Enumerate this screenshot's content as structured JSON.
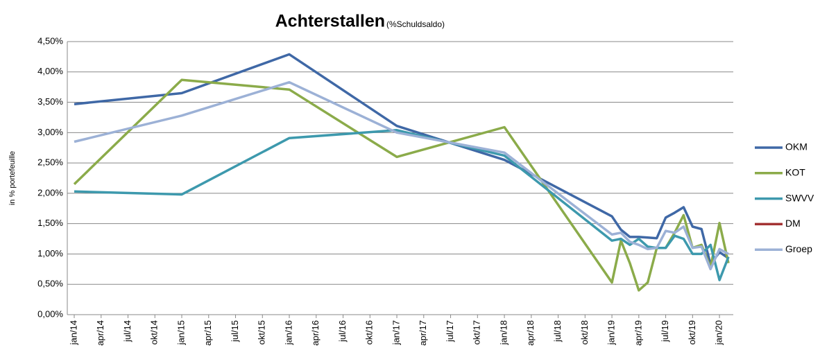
{
  "chart_data": {
    "type": "line",
    "title": "Achterstallen",
    "subtitle": "(%Schuldsaldo)",
    "y_label": "in % portefeuille",
    "x": [
      "2014-01",
      "2015-01",
      "2016-01",
      "2017-01",
      "2018-01",
      "2019-01",
      "2019-02",
      "2019-03",
      "2019-04",
      "2019-05",
      "2019-06",
      "2019-07",
      "2019-08",
      "2019-09",
      "2019-10",
      "2019-11",
      "2019-12",
      "2020-01",
      "2020-02"
    ],
    "xlim": [
      "2014-01",
      "2020-02"
    ],
    "xticks": [
      {
        "value": "2014-01",
        "label": "jan/14"
      },
      {
        "value": "2014-04",
        "label": "apr/14"
      },
      {
        "value": "2014-07",
        "label": "jul/14"
      },
      {
        "value": "2014-10",
        "label": "okt/14"
      },
      {
        "value": "2015-01",
        "label": "jan/15"
      },
      {
        "value": "2015-04",
        "label": "apr/15"
      },
      {
        "value": "2015-07",
        "label": "jul/15"
      },
      {
        "value": "2015-10",
        "label": "okt/15"
      },
      {
        "value": "2016-01",
        "label": "jan/16"
      },
      {
        "value": "2016-04",
        "label": "apr/16"
      },
      {
        "value": "2016-07",
        "label": "jul/16"
      },
      {
        "value": "2016-10",
        "label": "okt/16"
      },
      {
        "value": "2017-01",
        "label": "jan/17"
      },
      {
        "value": "2017-04",
        "label": "apr/17"
      },
      {
        "value": "2017-07",
        "label": "jul/17"
      },
      {
        "value": "2017-10",
        "label": "okt/17"
      },
      {
        "value": "2018-01",
        "label": "jan/18"
      },
      {
        "value": "2018-04",
        "label": "apr/18"
      },
      {
        "value": "2018-07",
        "label": "jul/18"
      },
      {
        "value": "2018-10",
        "label": "okt/18"
      },
      {
        "value": "2019-01",
        "label": "jan/19"
      },
      {
        "value": "2019-04",
        "label": "apr/19"
      },
      {
        "value": "2019-07",
        "label": "jul/19"
      },
      {
        "value": "2019-10",
        "label": "okt/19"
      },
      {
        "value": "2020-01",
        "label": "jan/20"
      }
    ],
    "ylim": [
      0,
      4.5
    ],
    "yticks": [
      {
        "value": 0,
        "label": "0,00%"
      },
      {
        "value": 0.5,
        "label": "0,50%"
      },
      {
        "value": 1,
        "label": "1,00%"
      },
      {
        "value": 1.5,
        "label": "1,50%"
      },
      {
        "value": 2,
        "label": "2,00%"
      },
      {
        "value": 2.5,
        "label": "2,50%"
      },
      {
        "value": 3,
        "label": "3,00%"
      },
      {
        "value": 3.5,
        "label": "3,50%"
      },
      {
        "value": 4,
        "label": "4,00%"
      },
      {
        "value": 4.5,
        "label": "4,50%"
      }
    ],
    "grid": true,
    "legend": "right",
    "series": [
      {
        "name": "OKM",
        "color": "#3f68a6",
        "values": [
          3.47,
          3.65,
          4.29,
          3.11,
          2.55,
          1.62,
          1.4,
          1.28,
          1.28,
          1.27,
          1.26,
          1.6,
          1.68,
          1.77,
          1.45,
          1.41,
          0.83,
          1.03,
          0.93
        ]
      },
      {
        "name": "KOT",
        "color": "#8bab4a",
        "values": [
          2.15,
          3.87,
          3.71,
          2.6,
          3.09,
          0.53,
          1.22,
          0.85,
          0.4,
          0.53,
          1.1,
          1.1,
          1.35,
          1.64,
          1.1,
          1.15,
          0.78,
          1.51,
          0.85
        ]
      },
      {
        "name": "SWVV",
        "color": "#3d99ad",
        "values": [
          2.03,
          1.98,
          2.91,
          3.04,
          2.62,
          1.22,
          1.25,
          1.15,
          1.25,
          1.12,
          1.1,
          1.1,
          1.3,
          1.25,
          1.0,
          1.0,
          1.15,
          0.57,
          0.95
        ]
      },
      {
        "name": "DM",
        "color": "#a33233",
        "values": [
          null,
          null,
          null,
          null,
          null,
          null,
          null,
          null,
          null,
          null,
          null,
          null,
          null,
          null,
          null,
          null,
          null,
          null,
          null
        ]
      },
      {
        "name": "Groep",
        "color": "#9cb1d6",
        "values": [
          2.85,
          3.28,
          3.83,
          3.0,
          2.67,
          1.32,
          1.35,
          1.2,
          1.15,
          1.08,
          1.1,
          1.38,
          1.35,
          1.45,
          1.1,
          1.12,
          0.75,
          1.08,
          1.0
        ]
      }
    ]
  }
}
